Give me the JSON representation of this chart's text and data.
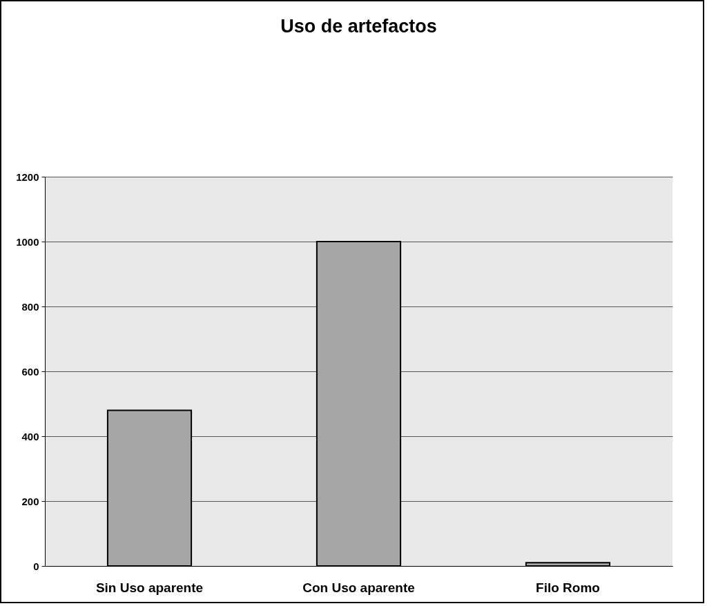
{
  "chart_data": {
    "type": "bar",
    "title": "Uso de artefactos",
    "categories": [
      "Sin Uso aparente",
      "Con Uso aparente",
      "Filo Romo"
    ],
    "values": [
      480,
      1000,
      10
    ],
    "color": "#a6a6a6",
    "ylim": [
      0,
      1200
    ],
    "yticks": [
      0,
      200,
      400,
      600,
      800,
      1000,
      1200
    ],
    "grid": "y"
  }
}
